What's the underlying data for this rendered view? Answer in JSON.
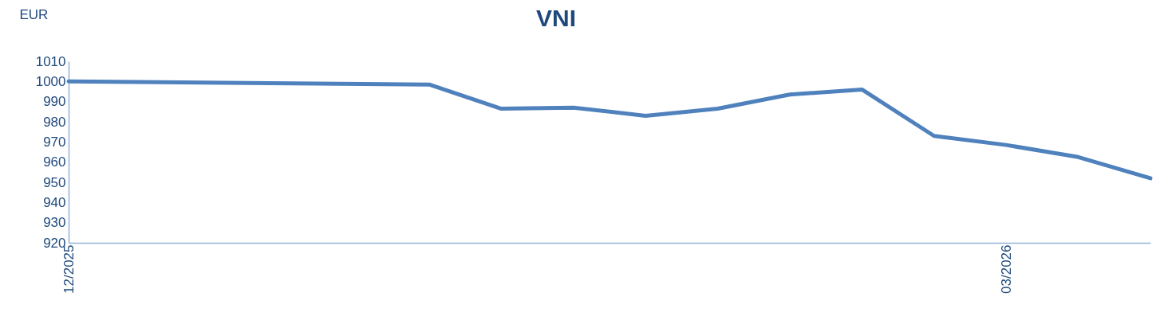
{
  "chart_data": {
    "type": "line",
    "title": "VNI",
    "ylabel": "EUR",
    "x": [
      "2025-12-01",
      "2026-01-05",
      "2026-01-12",
      "2026-01-19",
      "2026-01-26",
      "2026-02-02",
      "2026-02-09",
      "2026-02-16",
      "2026-02-23",
      "2026-03-02",
      "2026-03-09",
      "2026-03-16"
    ],
    "series": [
      {
        "color": "#4f81bd",
        "values": [
          1000,
          998.5,
          986.5,
          987,
          983,
          986.5,
          993.5,
          996,
          973,
          968.5,
          962.5,
          952
        ]
      }
    ],
    "xlim": [
      "2025-12-01",
      "2026-03-16"
    ],
    "xticks": [
      {
        "value": "2025-12-01",
        "label": "12/2025"
      },
      {
        "value": "2026-03-02",
        "label": "03/2026"
      }
    ],
    "ylim": [
      920,
      1010
    ],
    "yticks": [
      920,
      930,
      940,
      950,
      960,
      970,
      980,
      990,
      1000,
      1010
    ],
    "grid": false,
    "marker": "none",
    "line_style": "solid"
  }
}
